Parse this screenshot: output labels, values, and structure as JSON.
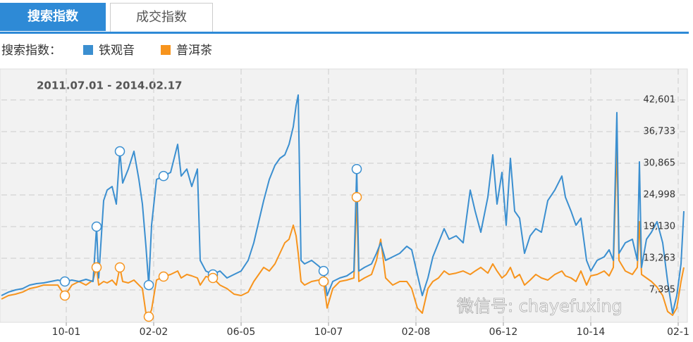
{
  "tabs": [
    "搜索指数",
    "成交指数"
  ],
  "chart_data": {
    "type": "line",
    "legend_title": "搜索指数：",
    "subtitle": "2011.07.01 - 2014.02.17",
    "watermark": "微信号: chayefuxing",
    "grid": true,
    "x": [
      0,
      10,
      20,
      30,
      40,
      50,
      60,
      70,
      80,
      90,
      100,
      110,
      120,
      130,
      135,
      138,
      145,
      150,
      157,
      163,
      168,
      172,
      180,
      188,
      195,
      200,
      205,
      209,
      213,
      220,
      230,
      240,
      250,
      255,
      263,
      270,
      278,
      282,
      290,
      300,
      310,
      320,
      330,
      340,
      350,
      358,
      365,
      372,
      380,
      388,
      395,
      402,
      408,
      414,
      418,
      421,
      425,
      430,
      440,
      450,
      457,
      462,
      470,
      480,
      490,
      500,
      504,
      507,
      515,
      525,
      532,
      538,
      545,
      555,
      565,
      575,
      582,
      590,
      597,
      605,
      612,
      620,
      628,
      635,
      645,
      655,
      665,
      672,
      680,
      690,
      697,
      703,
      710,
      716,
      722,
      728,
      735,
      742,
      750,
      758,
      766,
      775,
      785,
      795,
      800,
      808,
      815,
      822,
      830,
      836,
      845,
      855,
      862,
      868,
      873,
      876,
      885,
      895,
      902,
      905,
      908,
      915,
      922,
      930,
      938,
      945,
      952,
      958,
      964,
      968
    ],
    "xlim": [
      0,
      966
    ],
    "xticks": [
      {
        "value": 92,
        "label": "10-01"
      },
      {
        "value": 216,
        "label": "02-02"
      },
      {
        "value": 340,
        "label": "06-05"
      },
      {
        "value": 464,
        "label": "10-07"
      },
      {
        "value": 588,
        "label": "02-08"
      },
      {
        "value": 712,
        "label": "06-12"
      },
      {
        "value": 836,
        "label": "10-14"
      },
      {
        "value": 960,
        "label": "02-1"
      }
    ],
    "ylim": [
      1400,
      48340
    ],
    "yticks": [
      {
        "value": 7395,
        "label": "7,395"
      },
      {
        "value": 13263,
        "label": "13,263"
      },
      {
        "value": 19130,
        "label": "19,130"
      },
      {
        "value": 24998,
        "label": "24,998"
      },
      {
        "value": 30865,
        "label": "30,865"
      },
      {
        "value": 36733,
        "label": "36,733"
      },
      {
        "value": 42601,
        "label": "42,601"
      }
    ],
    "event_x": [
      90,
      135,
      168,
      209,
      230,
      300,
      457,
      504
    ],
    "series": [
      {
        "name": "铁观音",
        "color": "#3b8fd0",
        "values": [
          6350,
          7000,
          7400,
          7650,
          8300,
          8570,
          8700,
          8960,
          9220,
          8960,
          9220,
          8960,
          9350,
          8960,
          19130,
          9610,
          23950,
          25900,
          26560,
          23300,
          33080,
          27200,
          29800,
          33080,
          27870,
          23300,
          15480,
          8300,
          19390,
          27870,
          28500,
          29170,
          34380,
          28500,
          29800,
          26560,
          29800,
          12870,
          10910,
          10260,
          10910,
          9610,
          10260,
          10910,
          12870,
          16130,
          20040,
          23950,
          27870,
          30480,
          31780,
          32430,
          34380,
          37640,
          41550,
          43510,
          12870,
          12220,
          12870,
          11830,
          10910,
          6350,
          8960,
          9610,
          10000,
          10910,
          29800,
          10910,
          11570,
          12220,
          14180,
          16130,
          12870,
          13520,
          14180,
          15480,
          14830,
          10260,
          6350,
          9610,
          13520,
          16130,
          18740,
          16780,
          17430,
          16130,
          25900,
          21990,
          18090,
          24600,
          32430,
          23300,
          29170,
          19390,
          31780,
          21990,
          20700,
          14180,
          17430,
          18740,
          18090,
          23950,
          25900,
          28500,
          24600,
          21990,
          19390,
          20700,
          12870,
          10910,
          12870,
          13520,
          14830,
          12870,
          40250,
          14180,
          16130,
          16780,
          12870,
          31130,
          11570,
          16780,
          18090,
          20040,
          16130,
          8960,
          3090,
          6350,
          12220,
          21990
        ]
      },
      {
        "name": "普洱茶",
        "color": "#f7941d",
        "values": [
          5700,
          6350,
          6610,
          7000,
          7650,
          7920,
          8300,
          8300,
          8300,
          6350,
          8300,
          8960,
          8300,
          9220,
          11570,
          8300,
          8960,
          8700,
          9220,
          8300,
          11570,
          8960,
          8700,
          9220,
          8300,
          7650,
          3090,
          2440,
          3745,
          9220,
          9870,
          10260,
          10910,
          9610,
          10260,
          10000,
          9610,
          8300,
          9870,
          9610,
          8300,
          7650,
          6610,
          6350,
          7000,
          8960,
          10260,
          11570,
          10910,
          12220,
          14180,
          16130,
          16780,
          19390,
          17430,
          14180,
          8960,
          8300,
          8960,
          9220,
          8960,
          4050,
          7650,
          8960,
          9220,
          9610,
          24600,
          8960,
          9610,
          10260,
          12870,
          16780,
          9610,
          8300,
          8960,
          8960,
          7650,
          4050,
          3090,
          7650,
          8960,
          9610,
          10910,
          10260,
          10520,
          10910,
          10260,
          10910,
          11570,
          10520,
          12220,
          10910,
          9610,
          10260,
          11570,
          9610,
          10260,
          8300,
          9220,
          10260,
          9610,
          9220,
          10260,
          10910,
          10000,
          9610,
          8960,
          10910,
          8300,
          10000,
          10260,
          10910,
          10000,
          11570,
          34380,
          12870,
          10910,
          10260,
          11570,
          20040,
          10260,
          9610,
          8960,
          7920,
          6350,
          3390,
          2700,
          4050,
          8960,
          11570
        ]
      }
    ]
  }
}
